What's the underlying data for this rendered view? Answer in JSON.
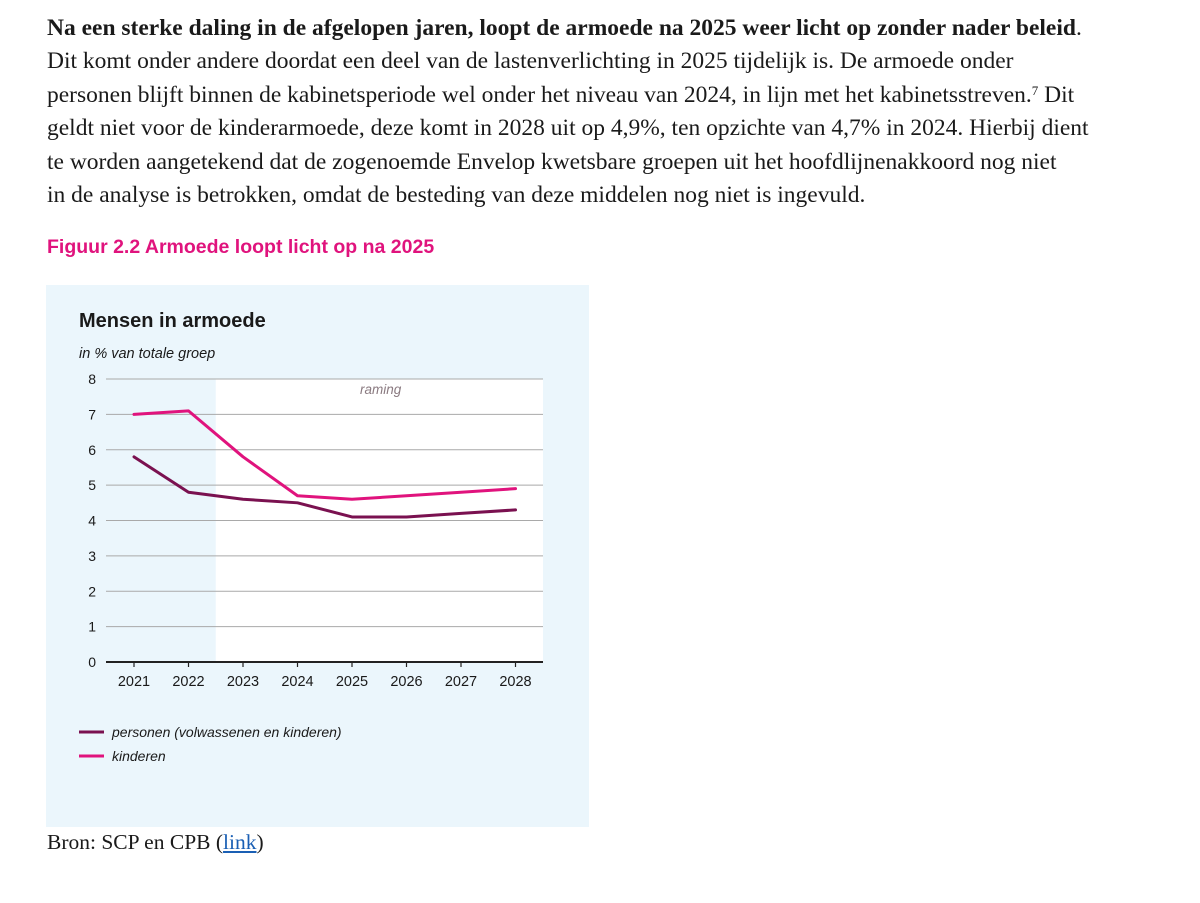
{
  "paragraph": {
    "lead_bold": "Na een sterke daling in de afgelopen jaren, loopt de armoede na 2025 weer licht op zonder nader beleid",
    "lead_end": ".",
    "line2": "Dit komt onder andere doordat een deel van de lastenverlichting in 2025 tijdelijk is. De armoede onder",
    "line3": "personen blijft binnen de kabinetsperiode wel onder het niveau van 2024, in lijn met het kabinetsstreven.",
    "footnote": "7",
    "line3_end": " Dit",
    "line4": "geldt niet voor de kinderarmoede, deze komt in 2028 uit op 4,9%, ten opzichte van 4,7% in 2024. Hierbij dient",
    "line5": "te worden aangetekend dat de zogenoemde Envelop kwetsbare groepen uit het hoofdlijnenakkoord nog niet",
    "line6": "in de analyse is betrokken, omdat de besteding van deze middelen nog niet is ingevuld."
  },
  "figure": {
    "title": "Figuur 2.2 Armoede loopt licht op na 2025"
  },
  "chart_data": {
    "type": "line",
    "title": "Mensen in armoede",
    "subtitle": "in % van totale groep",
    "annotation": "raming",
    "x": [
      "2021",
      "2022",
      "2023",
      "2024",
      "2025",
      "2026",
      "2027",
      "2028"
    ],
    "y_ticks": [
      "0",
      "1",
      "2",
      "3",
      "4",
      "5",
      "6",
      "7",
      "8"
    ],
    "ylim": [
      0,
      8
    ],
    "grid": true,
    "forecast_shading_from": "2022",
    "series": [
      {
        "name": "personen (volwassenen en kinderen)",
        "color": "#7a1150",
        "values": [
          5.8,
          4.8,
          4.6,
          4.5,
          4.1,
          4.1,
          4.2,
          4.3
        ]
      },
      {
        "name": "kinderen",
        "color": "#e0137d",
        "values": [
          7.0,
          7.1,
          5.8,
          4.7,
          4.6,
          4.7,
          4.8,
          4.9
        ]
      }
    ],
    "legend_position": "bottom-left"
  },
  "source": {
    "prefix": "Bron: SCP en CPB (",
    "link_text": "link",
    "suffix": ")"
  }
}
